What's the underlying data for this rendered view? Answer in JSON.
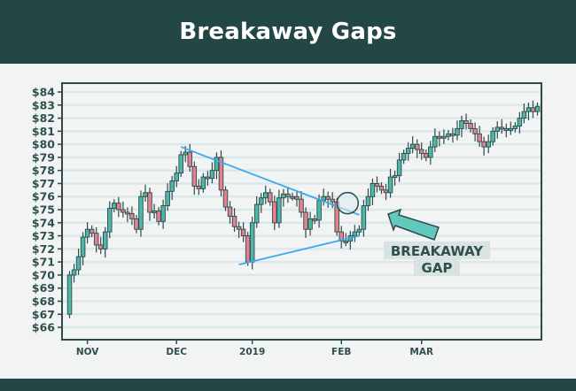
{
  "header": {
    "title": "Breakaway Gaps"
  },
  "colors": {
    "up": "#4fb5a8",
    "down": "#e5818f",
    "trendline": "#3aa8f0",
    "frame": "#2c4a4a",
    "grid": "#dbe7ea",
    "arrow": "#63c8bd"
  },
  "chart_data": {
    "type": "candlestick",
    "title": "Breakaway Gaps",
    "ylim": [
      65.3,
      84.7
    ],
    "y_ticks": [
      66,
      67,
      68,
      69,
      70,
      71,
      72,
      73,
      74,
      75,
      76,
      77,
      78,
      79,
      80,
      81,
      82,
      83,
      84
    ],
    "y_tick_labels": [
      "$66",
      "$67",
      "$68",
      "$69",
      "$70",
      "$71",
      "$72",
      "$73",
      "$74",
      "$75",
      "$76",
      "$77",
      "$78",
      "$79",
      "$80",
      "$81",
      "$82",
      "$83",
      "$84"
    ],
    "x_ticks": [
      {
        "label": "NOV",
        "index": 4
      },
      {
        "label": "DEC",
        "index": 24
      },
      {
        "label": "2019",
        "index": 41
      },
      {
        "label": "FEB",
        "index": 61
      },
      {
        "label": "MAR",
        "index": 79
      }
    ],
    "first_open": 67,
    "closes": [
      70,
      70.4,
      71.4,
      72.9,
      73.5,
      73.2,
      72.3,
      72.0,
      73.3,
      75.1,
      75.5,
      75.0,
      74.8,
      74.7,
      74.3,
      73.5,
      76.0,
      76.3,
      74.8,
      74.9,
      74.1,
      75.3,
      76.4,
      77.2,
      77.8,
      79.2,
      79.4,
      78.3,
      76.8,
      76.6,
      77.5,
      77.4,
      78.0,
      79.0,
      76.5,
      75.2,
      74.5,
      73.7,
      73.5,
      73.0,
      71.0,
      74.0,
      75.4,
      75.9,
      76.3,
      75.6,
      74.0,
      75.9,
      76.2,
      76.0,
      76.0,
      75.8,
      74.8,
      73.5,
      74.3,
      74.2,
      75.7,
      76.0,
      75.8,
      75.6,
      73.3,
      72.6,
      72.6,
      73.0,
      73.3,
      73.5,
      75.3,
      76.0,
      77.0,
      76.8,
      76.5,
      76.3,
      77.5,
      77.6,
      78.8,
      79.3,
      79.7,
      80.0,
      79.6,
      79.3,
      79.0,
      79.8,
      80.6,
      80.5,
      80.6,
      80.8,
      80.7,
      81.2,
      81.8,
      81.6,
      81.2,
      80.8,
      80.2,
      79.8,
      80.2,
      81.0,
      81.3,
      81.2,
      81.2,
      81.2,
      81.4,
      82.0,
      82.5,
      82.8,
      82.5,
      82.9
    ],
    "trendlines": [
      {
        "name": "upper",
        "from": {
          "index": 25,
          "price": 79.8
        },
        "to": {
          "index": 65,
          "price": 74.6
        }
      },
      {
        "name": "lower",
        "from": {
          "index": 38,
          "price": 70.8
        },
        "to": {
          "index": 65,
          "price": 73.0
        }
      }
    ],
    "annotation": {
      "line1": "BREAKAWAY",
      "line2": "GAP",
      "gap_index": 62,
      "gap_price": 75.3
    }
  }
}
